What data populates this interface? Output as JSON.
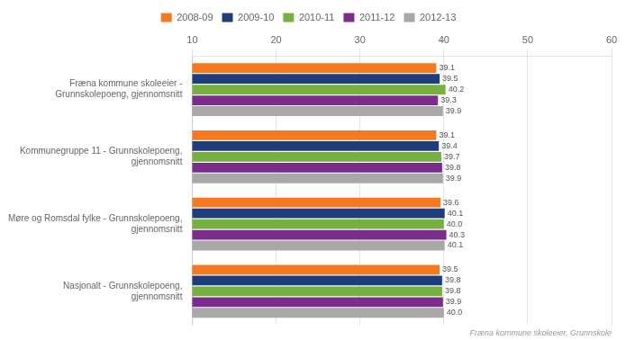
{
  "chart_data": {
    "type": "bar",
    "orientation": "horizontal",
    "categories": [
      "Fræna kommune skoleeier -\nGrunnskolepoeng, gjennomsnitt",
      "Kommunegruppe 11 - Grunnskolepoeng,\ngjennomsnitt",
      "Møre og Romsdal fylke - Grunnskolepoeng,\ngjennomsnitt",
      "Nasjonalt - Grunnskolepoeng,\ngjennomsnitt"
    ],
    "series": [
      {
        "name": "2008-09",
        "color": "#f47920",
        "values": [
          39.1,
          39.1,
          39.6,
          39.5
        ],
        "value_labels": [
          "39.1",
          "39.1",
          "39.6",
          "39.5"
        ]
      },
      {
        "name": "2009-10",
        "color": "#1f3d7a",
        "values": [
          39.5,
          39.4,
          40.1,
          39.8
        ],
        "value_labels": [
          "39.5",
          "39.4",
          "40.1",
          "39.8"
        ]
      },
      {
        "name": "2010-11",
        "color": "#76b041",
        "values": [
          40.2,
          39.7,
          40.0,
          39.8
        ],
        "value_labels": [
          "40.2",
          "39.7",
          "40.0",
          "39.8"
        ]
      },
      {
        "name": "2011-12",
        "color": "#7b2d8b",
        "values": [
          39.3,
          39.8,
          40.3,
          39.9
        ],
        "value_labels": [
          "39.3",
          "39.8",
          "40.3",
          "39.9"
        ]
      },
      {
        "name": "2012-13",
        "color": "#a8a8a8",
        "values": [
          39.9,
          39.9,
          40.1,
          40.0
        ],
        "value_labels": [
          "39.9",
          "39.9",
          "40.1",
          "40.0"
        ]
      }
    ],
    "xlim": [
      10,
      60
    ],
    "xticks": [
      10,
      20,
      30,
      40,
      50,
      60
    ],
    "grid": true,
    "legend": "top",
    "data_labels": true,
    "annotations": [
      "Fræna kommune skoleeier, Grunnskole"
    ]
  }
}
